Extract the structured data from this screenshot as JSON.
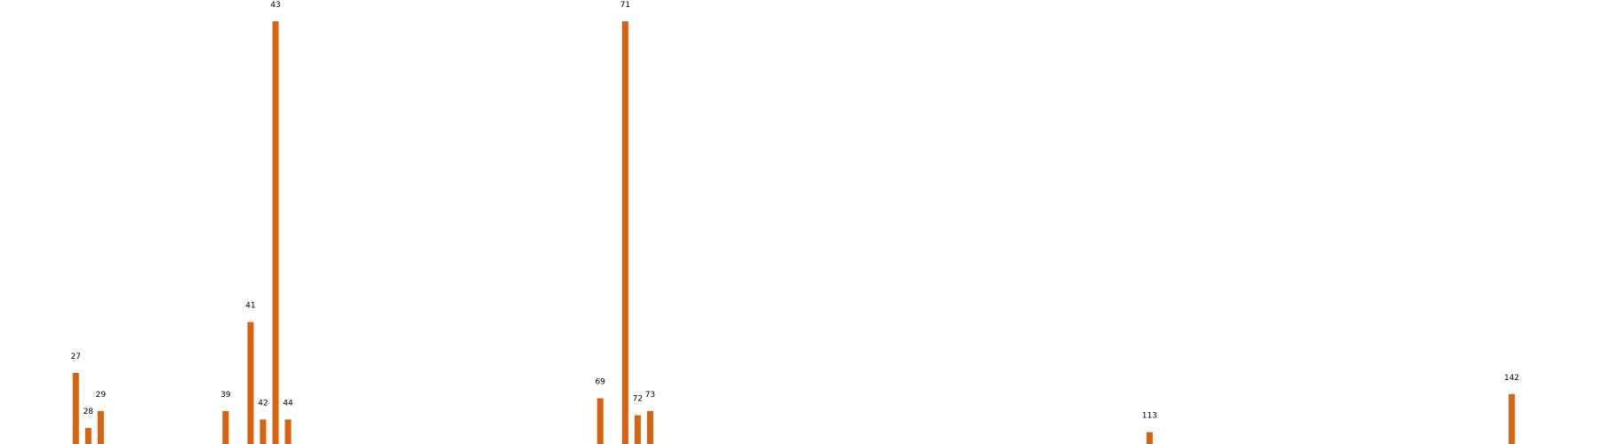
{
  "chart_data": {
    "type": "bar",
    "x": [
      27,
      28,
      29,
      39,
      41,
      42,
      43,
      44,
      69,
      71,
      72,
      73,
      113,
      142
    ],
    "x_labels": [
      "27",
      "28",
      "29",
      "39",
      "41",
      "42",
      "43",
      "44",
      "69",
      "71",
      "72",
      "73",
      "113",
      "142"
    ],
    "values": [
      17,
      4,
      8,
      8,
      29,
      6,
      100,
      6,
      11,
      100,
      7,
      8,
      3,
      12
    ],
    "xlim": [
      22,
      148
    ],
    "ylim": [
      0,
      100
    ],
    "bar_color": "#d9620e",
    "label_color": "#000000",
    "background": "#ffffff",
    "grid": false,
    "axes_visible": false,
    "legend": "none"
  }
}
